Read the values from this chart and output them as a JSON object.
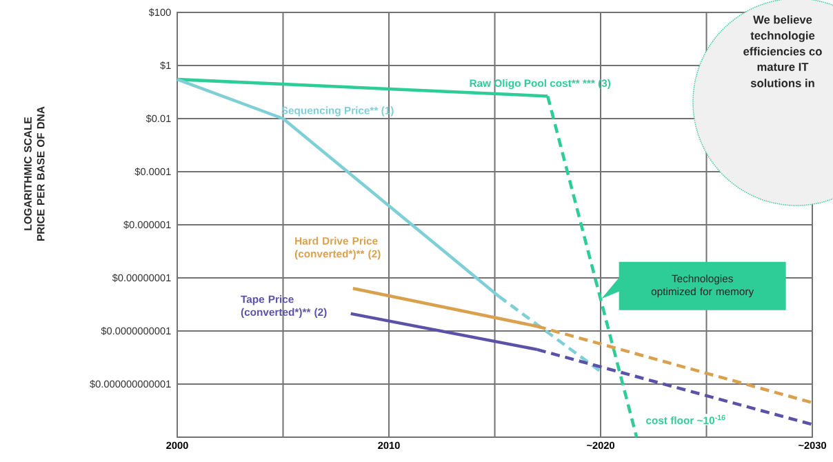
{
  "chart_data": {
    "type": "line",
    "ylabel": "LOGARITHMIC SCALE PRICE PER BASE OF DNA",
    "log": "y",
    "grid": true,
    "marker": "none",
    "xlim": [
      2000,
      2030
    ],
    "ylim": [
      1e-14,
      100
    ],
    "xticks": [
      2000,
      {
        "value": 2005,
        "label": null
      },
      2010,
      {
        "value": 2015,
        "label": null
      },
      {
        "value": 2020,
        "label": "~2020"
      },
      {
        "value": 2025,
        "label": null
      },
      {
        "value": 2030,
        "label": "~2030"
      }
    ],
    "yticks": [
      {
        "value": 100,
        "label": "$100"
      },
      {
        "value": 1,
        "label": "$1"
      },
      {
        "value": 0.01,
        "label": "$0.01"
      },
      {
        "value": 0.0001,
        "label": "$0.0001"
      },
      {
        "value": 1e-06,
        "label": "$0.000001"
      },
      {
        "value": 1e-08,
        "label": "$0.00000001"
      },
      {
        "value": 1e-10,
        "label": "$0.0000000001"
      },
      {
        "value": 1e-12,
        "label": "$0.000000000001"
      }
    ],
    "series": [
      {
        "name": "Raw Oligo Pool cost** *** (3)",
        "color": "#2ecc96",
        "x": [
          2000,
          2017.5
        ],
        "values": [
          0.3,
          0.07
        ]
      },
      {
        "color": "#2ecc96",
        "line_style": "dashed",
        "x": [
          2017.5,
          2021.7
        ],
        "values": [
          0.07,
          1e-14
        ]
      },
      {
        "name": "Sequencing Price** (1)",
        "color": "#7fcfd6",
        "x": [
          2000,
          2005,
          2015.2
        ],
        "values": [
          0.3,
          0.01,
          2e-09
        ]
      },
      {
        "color": "#7fcfd6",
        "line_style": "dashed",
        "x": [
          2015.2,
          2020
        ],
        "values": [
          2e-09,
          3e-12
        ]
      },
      {
        "name": "Hard Drive Price (converted*)** (2)",
        "color": "#d9a04e",
        "x": [
          2008.3,
          2017
        ],
        "values": [
          4e-09,
          1.5e-10
        ]
      },
      {
        "color": "#d9a04e",
        "line_style": "dashed",
        "x": [
          2017,
          2030
        ],
        "values": [
          1.5e-10,
          2e-13
        ]
      },
      {
        "name": "Tape Price (converted*)** (2)",
        "color": "#5a52a8",
        "x": [
          2008.2,
          2017
        ],
        "values": [
          4.5e-10,
          2e-11
        ]
      },
      {
        "color": "#5a52a8",
        "line_style": "dashed",
        "x": [
          2017,
          2030
        ],
        "values": [
          2e-11,
          3e-14
        ]
      }
    ],
    "annotations": [
      "Technologies optimized for memory",
      "cost floor ~10$^{-16}$",
      "We believe",
      "technologie",
      "efficiencies co",
      "mature IT",
      "solutions in"
    ]
  }
}
